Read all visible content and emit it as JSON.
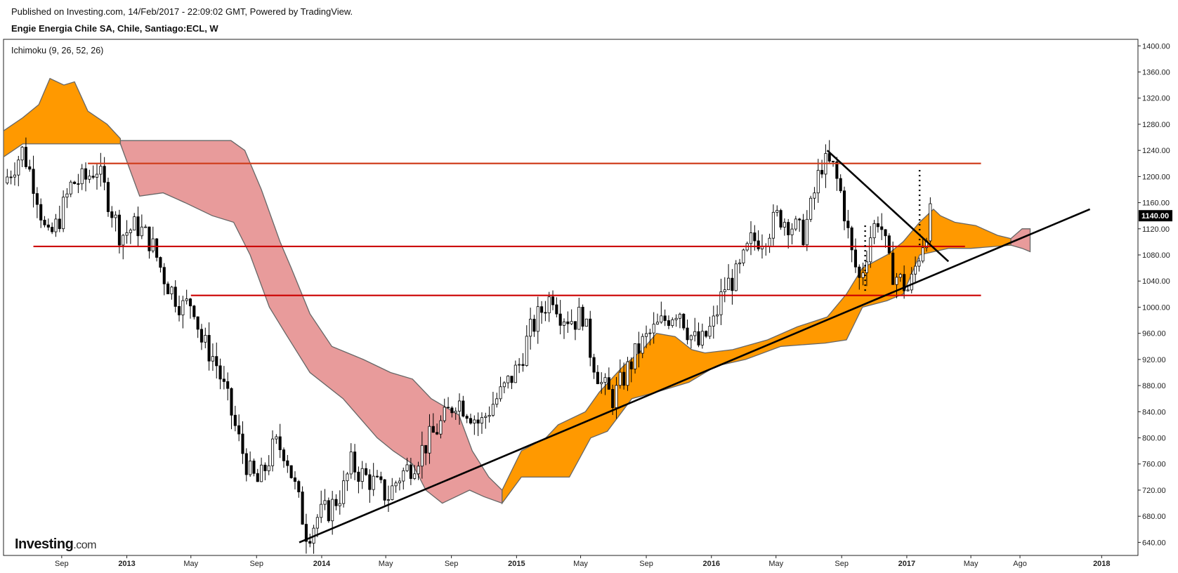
{
  "header": {
    "published": "Published on Investing.com, 14/Feb/2017 - 22:09:02 GMT, Powered by TradingView.",
    "symbol": "Engie Energia Chile SA, Chile, Santiago:ECL, W"
  },
  "indicator": "Ichimoku (9, 26, 52, 26)",
  "logo": {
    "main": "Investing",
    "suffix": ".com"
  },
  "colors": {
    "bull_cloud": "#ff9900",
    "bear_cloud": "#e89b9b",
    "cloud_edge": "#666666",
    "level_line": "#cc0000",
    "resistance_line": "#d04020",
    "trend_line": "#000000",
    "candle_up": "#ffffff",
    "candle_down": "#000000"
  },
  "chart_data": {
    "type": "candlestick",
    "y_axis": {
      "ticks": [
        "1400.00",
        "1360.00",
        "1320.00",
        "1280.00",
        "1240.00",
        "1200.00",
        "1160.00",
        "1120.00",
        "1080.00",
        "1040.00",
        "1000.00",
        "960.00",
        "920.00",
        "880.00",
        "840.00",
        "800.00",
        "760.00",
        "720.00",
        "680.00",
        "640.00"
      ],
      "range": [
        620,
        1410
      ]
    },
    "x_axis": {
      "ticks": [
        {
          "label": "Sep",
          "date": "2012-09",
          "major": false
        },
        {
          "label": "2013",
          "date": "2013-01",
          "major": true
        },
        {
          "label": "May",
          "date": "2013-05",
          "major": false
        },
        {
          "label": "Sep",
          "date": "2013-09",
          "major": false
        },
        {
          "label": "2014",
          "date": "2014-01",
          "major": true
        },
        {
          "label": "May",
          "date": "2014-05",
          "major": false
        },
        {
          "label": "Sep",
          "date": "2014-09",
          "major": false
        },
        {
          "label": "2015",
          "date": "2015-01",
          "major": true
        },
        {
          "label": "May",
          "date": "2015-05",
          "major": false
        },
        {
          "label": "Sep",
          "date": "2015-09",
          "major": false
        },
        {
          "label": "2016",
          "date": "2016-01",
          "major": true
        },
        {
          "label": "May",
          "date": "2016-05",
          "major": false
        },
        {
          "label": "Sep",
          "date": "2016-09",
          "major": false
        },
        {
          "label": "2017",
          "date": "2017-01",
          "major": true
        },
        {
          "label": "May",
          "date": "2017-05",
          "major": false
        },
        {
          "label": "Ago",
          "date": "2017-08",
          "major": false
        },
        {
          "label": "2018",
          "date": "2018-01",
          "major": true
        }
      ],
      "range": [
        "2012-05-15",
        "2018-03-10"
      ]
    },
    "last_price": "1140.00",
    "close_path": [
      [
        "2012-05-15",
        1190
      ],
      [
        "2012-06-20",
        1240
      ],
      [
        "2012-07-15",
        1180
      ],
      [
        "2012-08-05",
        1100
      ],
      [
        "2012-08-25",
        1130
      ],
      [
        "2012-09-20",
        1190
      ],
      [
        "2012-10-15",
        1195
      ],
      [
        "2012-11-05",
        1215
      ],
      [
        "2012-11-25",
        1170
      ],
      [
        "2012-12-20",
        1110
      ],
      [
        "2013-01-20",
        1125
      ],
      [
        "2013-02-15",
        1100
      ],
      [
        "2013-03-15",
        1040
      ],
      [
        "2013-04-15",
        1000
      ],
      [
        "2013-05-05",
        1010
      ],
      [
        "2013-05-20",
        950
      ],
      [
        "2013-06-15",
        920
      ],
      [
        "2013-07-15",
        840
      ],
      [
        "2013-08-01",
        790
      ],
      [
        "2013-08-20",
        745
      ],
      [
        "2013-09-05",
        730
      ],
      [
        "2013-10-05",
        790
      ],
      [
        "2013-10-25",
        780
      ],
      [
        "2013-11-10",
        730
      ],
      [
        "2013-12-05",
        650
      ],
      [
        "2013-12-25",
        680
      ],
      [
        "2014-01-15",
        690
      ],
      [
        "2014-02-10",
        720
      ],
      [
        "2014-02-25",
        760
      ],
      [
        "2014-03-15",
        745
      ],
      [
        "2014-04-10",
        730
      ],
      [
        "2014-05-05",
        710
      ],
      [
        "2014-05-25",
        740
      ],
      [
        "2014-06-20",
        760
      ],
      [
        "2014-07-15",
        790
      ],
      [
        "2014-08-20",
        830
      ],
      [
        "2014-09-10",
        860
      ],
      [
        "2014-10-05",
        840
      ],
      [
        "2014-10-25",
        820
      ],
      [
        "2014-11-15",
        850
      ],
      [
        "2014-12-05",
        870
      ],
      [
        "2015-01-05",
        910
      ],
      [
        "2015-01-25",
        960
      ],
      [
        "2015-02-20",
        1000
      ],
      [
        "2015-03-10",
        1020
      ],
      [
        "2015-03-25",
        990
      ],
      [
        "2015-04-20",
        980
      ],
      [
        "2015-05-05",
        990
      ],
      [
        "2015-05-20",
        930
      ],
      [
        "2015-06-10",
        880
      ],
      [
        "2015-07-01",
        860
      ],
      [
        "2015-07-25",
        900
      ],
      [
        "2015-08-20",
        940
      ],
      [
        "2015-09-10",
        960
      ],
      [
        "2015-10-05",
        980
      ],
      [
        "2015-11-01",
        1000
      ],
      [
        "2015-11-20",
        960
      ],
      [
        "2015-12-10",
        940
      ],
      [
        "2016-01-05",
        975
      ],
      [
        "2016-01-25",
        1030
      ],
      [
        "2016-02-20",
        1050
      ],
      [
        "2016-03-15",
        1100
      ],
      [
        "2016-04-10",
        1110
      ],
      [
        "2016-05-05",
        1140
      ],
      [
        "2016-05-25",
        1130
      ],
      [
        "2016-06-20",
        1110
      ],
      [
        "2016-07-05",
        1150
      ],
      [
        "2016-07-25",
        1220
      ],
      [
        "2016-08-15",
        1215
      ],
      [
        "2016-09-01",
        1170
      ],
      [
        "2016-09-20",
        1080
      ],
      [
        "2016-10-05",
        1040
      ],
      [
        "2016-10-25",
        1110
      ],
      [
        "2016-11-10",
        1140
      ],
      [
        "2016-11-30",
        1060
      ],
      [
        "2016-12-20",
        1040
      ],
      [
        "2017-01-05",
        1025
      ],
      [
        "2017-01-20",
        1070
      ],
      [
        "2017-02-14",
        1140
      ]
    ],
    "cloud": [
      {
        "sign": "bull",
        "upper": [
          [
            "2012-05-15",
            1270
          ],
          [
            "2012-06-20",
            1290
          ],
          [
            "2012-07-20",
            1310
          ],
          [
            "2012-08-10",
            1350
          ],
          [
            "2012-09-05",
            1340
          ],
          [
            "2012-09-25",
            1345
          ],
          [
            "2012-10-20",
            1300
          ],
          [
            "2012-11-25",
            1280
          ],
          [
            "2012-12-20",
            1258
          ]
        ],
        "lower": [
          [
            "2012-05-15",
            1230
          ],
          [
            "2012-06-20",
            1250
          ],
          [
            "2012-12-20",
            1250
          ]
        ]
      },
      {
        "sign": "bear",
        "upper": [
          [
            "2012-12-20",
            1255
          ],
          [
            "2013-07-15",
            1255
          ],
          [
            "2013-08-10",
            1240
          ],
          [
            "2013-09-10",
            1180
          ],
          [
            "2013-10-15",
            1100
          ],
          [
            "2013-11-05",
            1060
          ],
          [
            "2013-12-10",
            990
          ],
          [
            "2014-01-20",
            940
          ],
          [
            "2014-03-20",
            920
          ],
          [
            "2014-05-10",
            900
          ],
          [
            "2014-06-20",
            890
          ],
          [
            "2014-07-25",
            860
          ],
          [
            "2014-09-15",
            835
          ],
          [
            "2014-10-10",
            780
          ],
          [
            "2014-11-10",
            740
          ],
          [
            "2014-12-05",
            720
          ]
        ],
        "lower": [
          [
            "2012-12-20",
            1250
          ],
          [
            "2013-01-25",
            1170
          ],
          [
            "2013-03-10",
            1175
          ],
          [
            "2013-04-20",
            1160
          ],
          [
            "2013-06-10",
            1140
          ],
          [
            "2013-07-20",
            1130
          ],
          [
            "2013-08-20",
            1080
          ],
          [
            "2013-09-25",
            1000
          ],
          [
            "2013-10-25",
            960
          ],
          [
            "2013-12-10",
            900
          ],
          [
            "2014-02-10",
            860
          ],
          [
            "2014-04-15",
            800
          ],
          [
            "2014-05-15",
            780
          ],
          [
            "2014-06-20",
            760
          ],
          [
            "2014-07-15",
            720
          ],
          [
            "2014-08-15",
            700
          ],
          [
            "2014-10-05",
            720
          ],
          [
            "2014-11-01",
            710
          ],
          [
            "2014-12-05",
            700
          ]
        ]
      },
      {
        "sign": "bull",
        "upper": [
          [
            "2014-12-05",
            720
          ],
          [
            "2015-01-10",
            780
          ],
          [
            "2015-02-25",
            800
          ],
          [
            "2015-03-20",
            820
          ],
          [
            "2015-05-10",
            840
          ],
          [
            "2015-06-05",
            870
          ],
          [
            "2015-07-20",
            910
          ],
          [
            "2015-08-25",
            935
          ],
          [
            "2015-09-20",
            960
          ],
          [
            "2015-10-25",
            955
          ],
          [
            "2015-11-25",
            935
          ],
          [
            "2015-12-20",
            930
          ],
          [
            "2016-02-10",
            935
          ],
          [
            "2016-04-15",
            950
          ],
          [
            "2016-06-10",
            970
          ],
          [
            "2016-08-05",
            985
          ],
          [
            "2016-09-10",
            1020
          ],
          [
            "2016-10-10",
            1060
          ],
          [
            "2016-11-25",
            1080
          ],
          [
            "2016-12-25",
            1100
          ],
          [
            "2017-01-25",
            1130
          ],
          [
            "2017-02-20",
            1150
          ],
          [
            "2017-03-05",
            1140
          ],
          [
            "2017-04-01",
            1130
          ],
          [
            "2017-05-10",
            1125
          ],
          [
            "2017-06-20",
            1110
          ],
          [
            "2017-07-15",
            1105
          ]
        ],
        "lower": [
          [
            "2014-12-05",
            700
          ],
          [
            "2015-01-10",
            740
          ],
          [
            "2015-04-10",
            740
          ],
          [
            "2015-05-20",
            800
          ],
          [
            "2015-06-20",
            810
          ],
          [
            "2015-08-05",
            860
          ],
          [
            "2015-09-20",
            870
          ],
          [
            "2015-11-20",
            885
          ],
          [
            "2016-01-10",
            910
          ],
          [
            "2016-03-05",
            920
          ],
          [
            "2016-05-10",
            940
          ],
          [
            "2016-08-01",
            945
          ],
          [
            "2016-09-10",
            950
          ],
          [
            "2016-10-10",
            1000
          ],
          [
            "2016-11-25",
            1010
          ],
          [
            "2016-12-25",
            1020
          ],
          [
            "2017-01-25",
            1080
          ],
          [
            "2017-03-20",
            1090
          ],
          [
            "2017-05-01",
            1090
          ],
          [
            "2017-07-15",
            1095
          ]
        ]
      },
      {
        "sign": "bear",
        "upper": [
          [
            "2017-07-15",
            1105
          ],
          [
            "2017-08-05",
            1120
          ],
          [
            "2017-08-20",
            1120
          ]
        ],
        "lower": [
          [
            "2017-07-15",
            1095
          ],
          [
            "2017-08-05",
            1090
          ],
          [
            "2017-08-20",
            1085
          ]
        ]
      }
    ],
    "horizontal_levels": [
      {
        "y": 1220,
        "from": "2012-10-20",
        "to": "2017-05-20",
        "style": "resistance"
      },
      {
        "y": 1093,
        "from": "2012-07-10",
        "to": "2017-04-20",
        "style": "level"
      },
      {
        "y": 1018,
        "from": "2013-05-01",
        "to": "2017-05-20",
        "style": "level"
      }
    ],
    "trend_lines": [
      {
        "from": [
          "2013-11-20",
          640
        ],
        "to": [
          "2017-12-10",
          1150
        ]
      },
      {
        "from": [
          "2016-08-05",
          1240
        ],
        "to": [
          "2017-03-20",
          1070
        ]
      }
    ],
    "dotted_verticals": [
      {
        "x": "2016-10-15",
        "y_from": 1125,
        "y_to": 1020
      },
      {
        "x": "2017-01-25",
        "y_from": 1210,
        "y_to": 1090
      }
    ]
  }
}
